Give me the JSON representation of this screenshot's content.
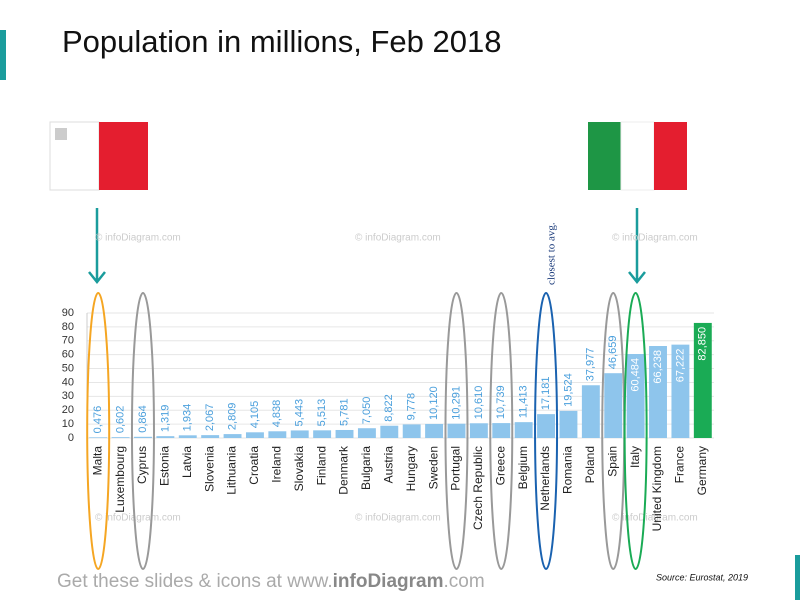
{
  "chart_data": {
    "type": "bar",
    "title": "Population in millions, Feb 2018",
    "annotation": "closest to avg.",
    "watermark": "© infoDiagram.com",
    "footer": [
      "Get these slides & icons at www.",
      "infoDiagram",
      ".com"
    ],
    "source": "Source: Eurostat, 2019",
    "categories": [
      "Malta",
      "Luxembourg",
      "Cyprus",
      "Estonia",
      "Latvia",
      "Slovenia",
      "Lithuania",
      "Croatia",
      "Ireland",
      "Slovakia",
      "Finland",
      "Denmark",
      "Bulgaria",
      "Austria",
      "Hungary",
      "Sweden",
      "Portugal",
      "Czech Republic",
      "Greece",
      "Belgium",
      "Netherlands",
      "Romania",
      "Poland",
      "Spain",
      "Italy",
      "United Kingdom",
      "France",
      "Germany"
    ],
    "values": [
      0.476,
      0.602,
      0.864,
      1.319,
      1.934,
      2.067,
      2.809,
      4.105,
      4.838,
      5.443,
      5.513,
      5.781,
      7.05,
      8.822,
      9.778,
      10.12,
      10.291,
      10.61,
      10.739,
      11.413,
      17.181,
      19.524,
      37.977,
      46.659,
      60.484,
      66.238,
      67.222,
      82.85
    ],
    "value_labels": [
      "0,476",
      "0,602",
      "0,864",
      "1,319",
      "1,934",
      "2,067",
      "2,809",
      "4,105",
      "4,838",
      "5,443",
      "5,513",
      "5,781",
      "7,050",
      "8,822",
      "9,778",
      "10,120",
      "10,291",
      "10,610",
      "10,739",
      "11,413",
      "17,181",
      "19,524",
      "37,977",
      "46,659",
      "60,484",
      "66,238",
      "67,222",
      "82,850"
    ],
    "colors": [
      "#8ec5ec",
      "#8ec5ec",
      "#8ec5ec",
      "#8ec5ec",
      "#8ec5ec",
      "#8ec5ec",
      "#8ec5ec",
      "#8ec5ec",
      "#8ec5ec",
      "#8ec5ec",
      "#8ec5ec",
      "#8ec5ec",
      "#8ec5ec",
      "#8ec5ec",
      "#8ec5ec",
      "#8ec5ec",
      "#8ec5ec",
      "#8ec5ec",
      "#8ec5ec",
      "#8ec5ec",
      "#8ec5ec",
      "#8ec5ec",
      "#8ec5ec",
      "#8ec5ec",
      "#8ec5ec",
      "#8ec5ec",
      "#8ec5ec",
      "#1aab55"
    ],
    "ylim": [
      0,
      90
    ],
    "yticks": [
      0,
      10,
      20,
      30,
      40,
      50,
      60,
      70,
      80,
      90
    ],
    "grid": true
  }
}
